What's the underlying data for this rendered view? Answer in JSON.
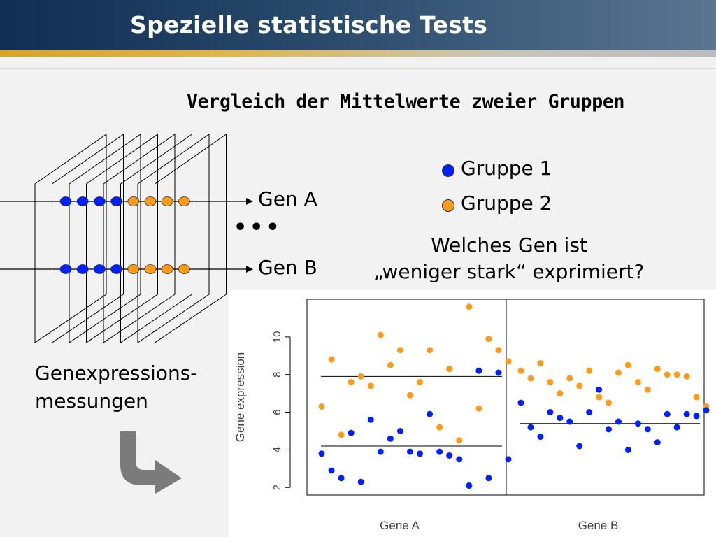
{
  "header": {
    "title": "Spezielle statistische Tests"
  },
  "subtitle": "Vergleich der Mittelwerte zweier Gruppen",
  "diagram": {
    "gene_a_label": "Gen A",
    "gene_b_label": "Gen B",
    "ellipsis": "•••",
    "measurements_line1": "Genexpressions-",
    "measurements_line2": "messungen"
  },
  "legend": {
    "group1": {
      "label": "Gruppe 1",
      "color": "#0020ff"
    },
    "group2": {
      "label": "Gruppe 2",
      "color": "#ff9a1a"
    }
  },
  "question": {
    "line1": "Welches Gen ist",
    "line2": "„weniger stark“ exprimiert?"
  },
  "colors": {
    "header_dark": "#0f2e52",
    "accent_stripe": "#d7a521"
  },
  "chart_data": {
    "type": "scatter",
    "ylabel": "Gene expression",
    "yticks": [
      2,
      4,
      6,
      8,
      10
    ],
    "ylim": [
      1.6,
      12.0
    ],
    "panels": [
      {
        "label": "Gene A",
        "mean_group1": 4.2,
        "mean_group2": 7.9,
        "group1": [
          3.8,
          2.9,
          2.5,
          4.9,
          2.3,
          5.6,
          3.9,
          4.6,
          5.0,
          3.9,
          3.8,
          5.9,
          3.9,
          3.7,
          3.5,
          2.1,
          8.2,
          2.5,
          8.1,
          3.5
        ],
        "group2": [
          6.3,
          8.8,
          4.8,
          7.6,
          7.9,
          7.4,
          10.1,
          8.5,
          9.3,
          6.9,
          7.6,
          9.3,
          5.2,
          8.3,
          4.5,
          11.6,
          6.2,
          9.9,
          9.3,
          8.7
        ]
      },
      {
        "label": "Gene B",
        "mean_group1": 5.4,
        "mean_group2": 7.6,
        "group1": [
          6.5,
          5.2,
          4.7,
          6.0,
          5.7,
          5.5,
          4.2,
          6.0,
          7.2,
          5.1,
          5.5,
          4.0,
          5.4,
          5.1,
          4.4,
          5.9,
          5.2,
          5.9,
          5.8,
          6.1
        ],
        "group2": [
          8.2,
          7.8,
          8.6,
          7.6,
          7.0,
          7.8,
          7.4,
          8.2,
          6.8,
          6.5,
          8.1,
          8.5,
          7.6,
          7.2,
          8.3,
          8.0,
          8.0,
          7.9,
          6.8,
          6.3
        ]
      }
    ]
  }
}
